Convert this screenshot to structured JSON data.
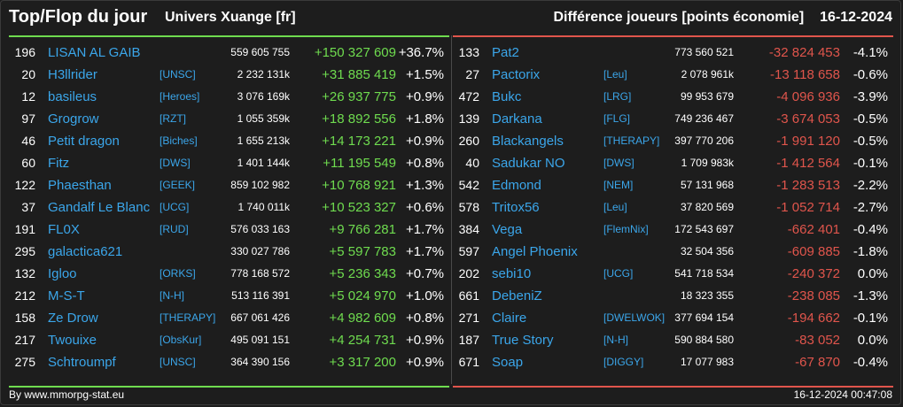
{
  "header": {
    "title": "Top/Flop du jour",
    "universe": "Univers Xuange [fr]",
    "subtitle": "Différence joueurs [points économie]",
    "date": "16-12-2024"
  },
  "top": [
    {
      "rank": "196",
      "name": "LISAN AL GAIB",
      "tag": "",
      "points": "559 605 755",
      "diff": "+150 327 609",
      "pct": "+36.7%"
    },
    {
      "rank": "20",
      "name": "H3llrider",
      "tag": "[UNSC]",
      "points": "2 232 131k",
      "diff": "+31 885 419",
      "pct": "+1.5%"
    },
    {
      "rank": "12",
      "name": "basileus",
      "tag": "[Heroes]",
      "points": "3 076 169k",
      "diff": "+26 937 775",
      "pct": "+0.9%"
    },
    {
      "rank": "97",
      "name": "Grogrow",
      "tag": "[RZT]",
      "points": "1 055 359k",
      "diff": "+18 892 556",
      "pct": "+1.8%"
    },
    {
      "rank": "46",
      "name": "Petit dragon",
      "tag": "[Biches]",
      "points": "1 655 213k",
      "diff": "+14 173 221",
      "pct": "+0.9%"
    },
    {
      "rank": "60",
      "name": "Fitz",
      "tag": "[DWS]",
      "points": "1 401 144k",
      "diff": "+11 195 549",
      "pct": "+0.8%"
    },
    {
      "rank": "122",
      "name": "Phaesthan",
      "tag": "[GEEK]",
      "points": "859 102 982",
      "diff": "+10 768 921",
      "pct": "+1.3%"
    },
    {
      "rank": "37",
      "name": "Gandalf Le Blanc",
      "tag": "[UCG]",
      "points": "1 740 011k",
      "diff": "+10 523 327",
      "pct": "+0.6%"
    },
    {
      "rank": "191",
      "name": "FL0X",
      "tag": "[RUD]",
      "points": "576 033 163",
      "diff": "+9 766 281",
      "pct": "+1.7%"
    },
    {
      "rank": "295",
      "name": "galactica621",
      "tag": "",
      "points": "330 027 786",
      "diff": "+5 597 783",
      "pct": "+1.7%"
    },
    {
      "rank": "132",
      "name": "Igloo",
      "tag": "[ORKS]",
      "points": "778 168 572",
      "diff": "+5 236 343",
      "pct": "+0.7%"
    },
    {
      "rank": "212",
      "name": "M-S-T",
      "tag": "[N-H]",
      "points": "513 116 391",
      "diff": "+5 024 970",
      "pct": "+1.0%"
    },
    {
      "rank": "158",
      "name": "Ze Drow",
      "tag": "[THERAPY]",
      "points": "667 061 426",
      "diff": "+4 982 609",
      "pct": "+0.8%"
    },
    {
      "rank": "217",
      "name": "Twouixe",
      "tag": "[ObsKur]",
      "points": "495 091 151",
      "diff": "+4 254 731",
      "pct": "+0.9%"
    },
    {
      "rank": "275",
      "name": "Schtroumpf",
      "tag": "[UNSC]",
      "points": "364 390 156",
      "diff": "+3 317 200",
      "pct": "+0.9%"
    }
  ],
  "flop": [
    {
      "rank": "133",
      "name": "Pat2",
      "tag": "",
      "points": "773 560 521",
      "diff": "-32 824 453",
      "pct": "-4.1%"
    },
    {
      "rank": "27",
      "name": "Pactorix",
      "tag": "[Leu]",
      "points": "2 078 961k",
      "diff": "-13 118 658",
      "pct": "-0.6%"
    },
    {
      "rank": "472",
      "name": "Bukc",
      "tag": "[LRG]",
      "points": "99 953 679",
      "diff": "-4 096 936",
      "pct": "-3.9%"
    },
    {
      "rank": "139",
      "name": "Darkana",
      "tag": "[FLG]",
      "points": "749 236 467",
      "diff": "-3 674 053",
      "pct": "-0.5%"
    },
    {
      "rank": "260",
      "name": "Blackangels",
      "tag": "[THERAPY]",
      "points": "397 770 206",
      "diff": "-1 991 120",
      "pct": "-0.5%"
    },
    {
      "rank": "40",
      "name": "Sadukar NO",
      "tag": "[DWS]",
      "points": "1 709 983k",
      "diff": "-1 412 564",
      "pct": "-0.1%"
    },
    {
      "rank": "542",
      "name": "Edmond",
      "tag": "[NEM]",
      "points": "57 131 968",
      "diff": "-1 283 513",
      "pct": "-2.2%"
    },
    {
      "rank": "578",
      "name": "Tritox56",
      "tag": "[Leu]",
      "points": "37 820 569",
      "diff": "-1 052 714",
      "pct": "-2.7%"
    },
    {
      "rank": "384",
      "name": "Vega",
      "tag": "[FlemNix]",
      "points": "172 543 697",
      "diff": "-662 401",
      "pct": "-0.4%"
    },
    {
      "rank": "597",
      "name": "Angel Phoenix",
      "tag": "",
      "points": "32 504 356",
      "diff": "-609 885",
      "pct": "-1.8%"
    },
    {
      "rank": "202",
      "name": "sebi10",
      "tag": "[UCG]",
      "points": "541 718 534",
      "diff": "-240 372",
      "pct": "0.0%"
    },
    {
      "rank": "661",
      "name": "DebeniZ",
      "tag": "",
      "points": "18 323 355",
      "diff": "-238 085",
      "pct": "-1.3%"
    },
    {
      "rank": "271",
      "name": "Claire",
      "tag": "[DWELWOK]",
      "points": "377 694 154",
      "diff": "-194 662",
      "pct": "-0.1%"
    },
    {
      "rank": "187",
      "name": "True Story",
      "tag": "[N-H]",
      "points": "590 884 580",
      "diff": "-83 052",
      "pct": "0.0%"
    },
    {
      "rank": "671",
      "name": "Soap",
      "tag": "[DIGGY]",
      "points": "17 077 983",
      "diff": "-67 870",
      "pct": "-0.4%"
    }
  ],
  "footer": {
    "source": "By www.mmorpg-stat.eu",
    "timestamp": "16-12-2024 00:47:08"
  },
  "colors": {
    "background": "#1d1d1d",
    "link": "#3ba6ea",
    "gain": "#6fdc4f",
    "loss": "#e0554c"
  }
}
